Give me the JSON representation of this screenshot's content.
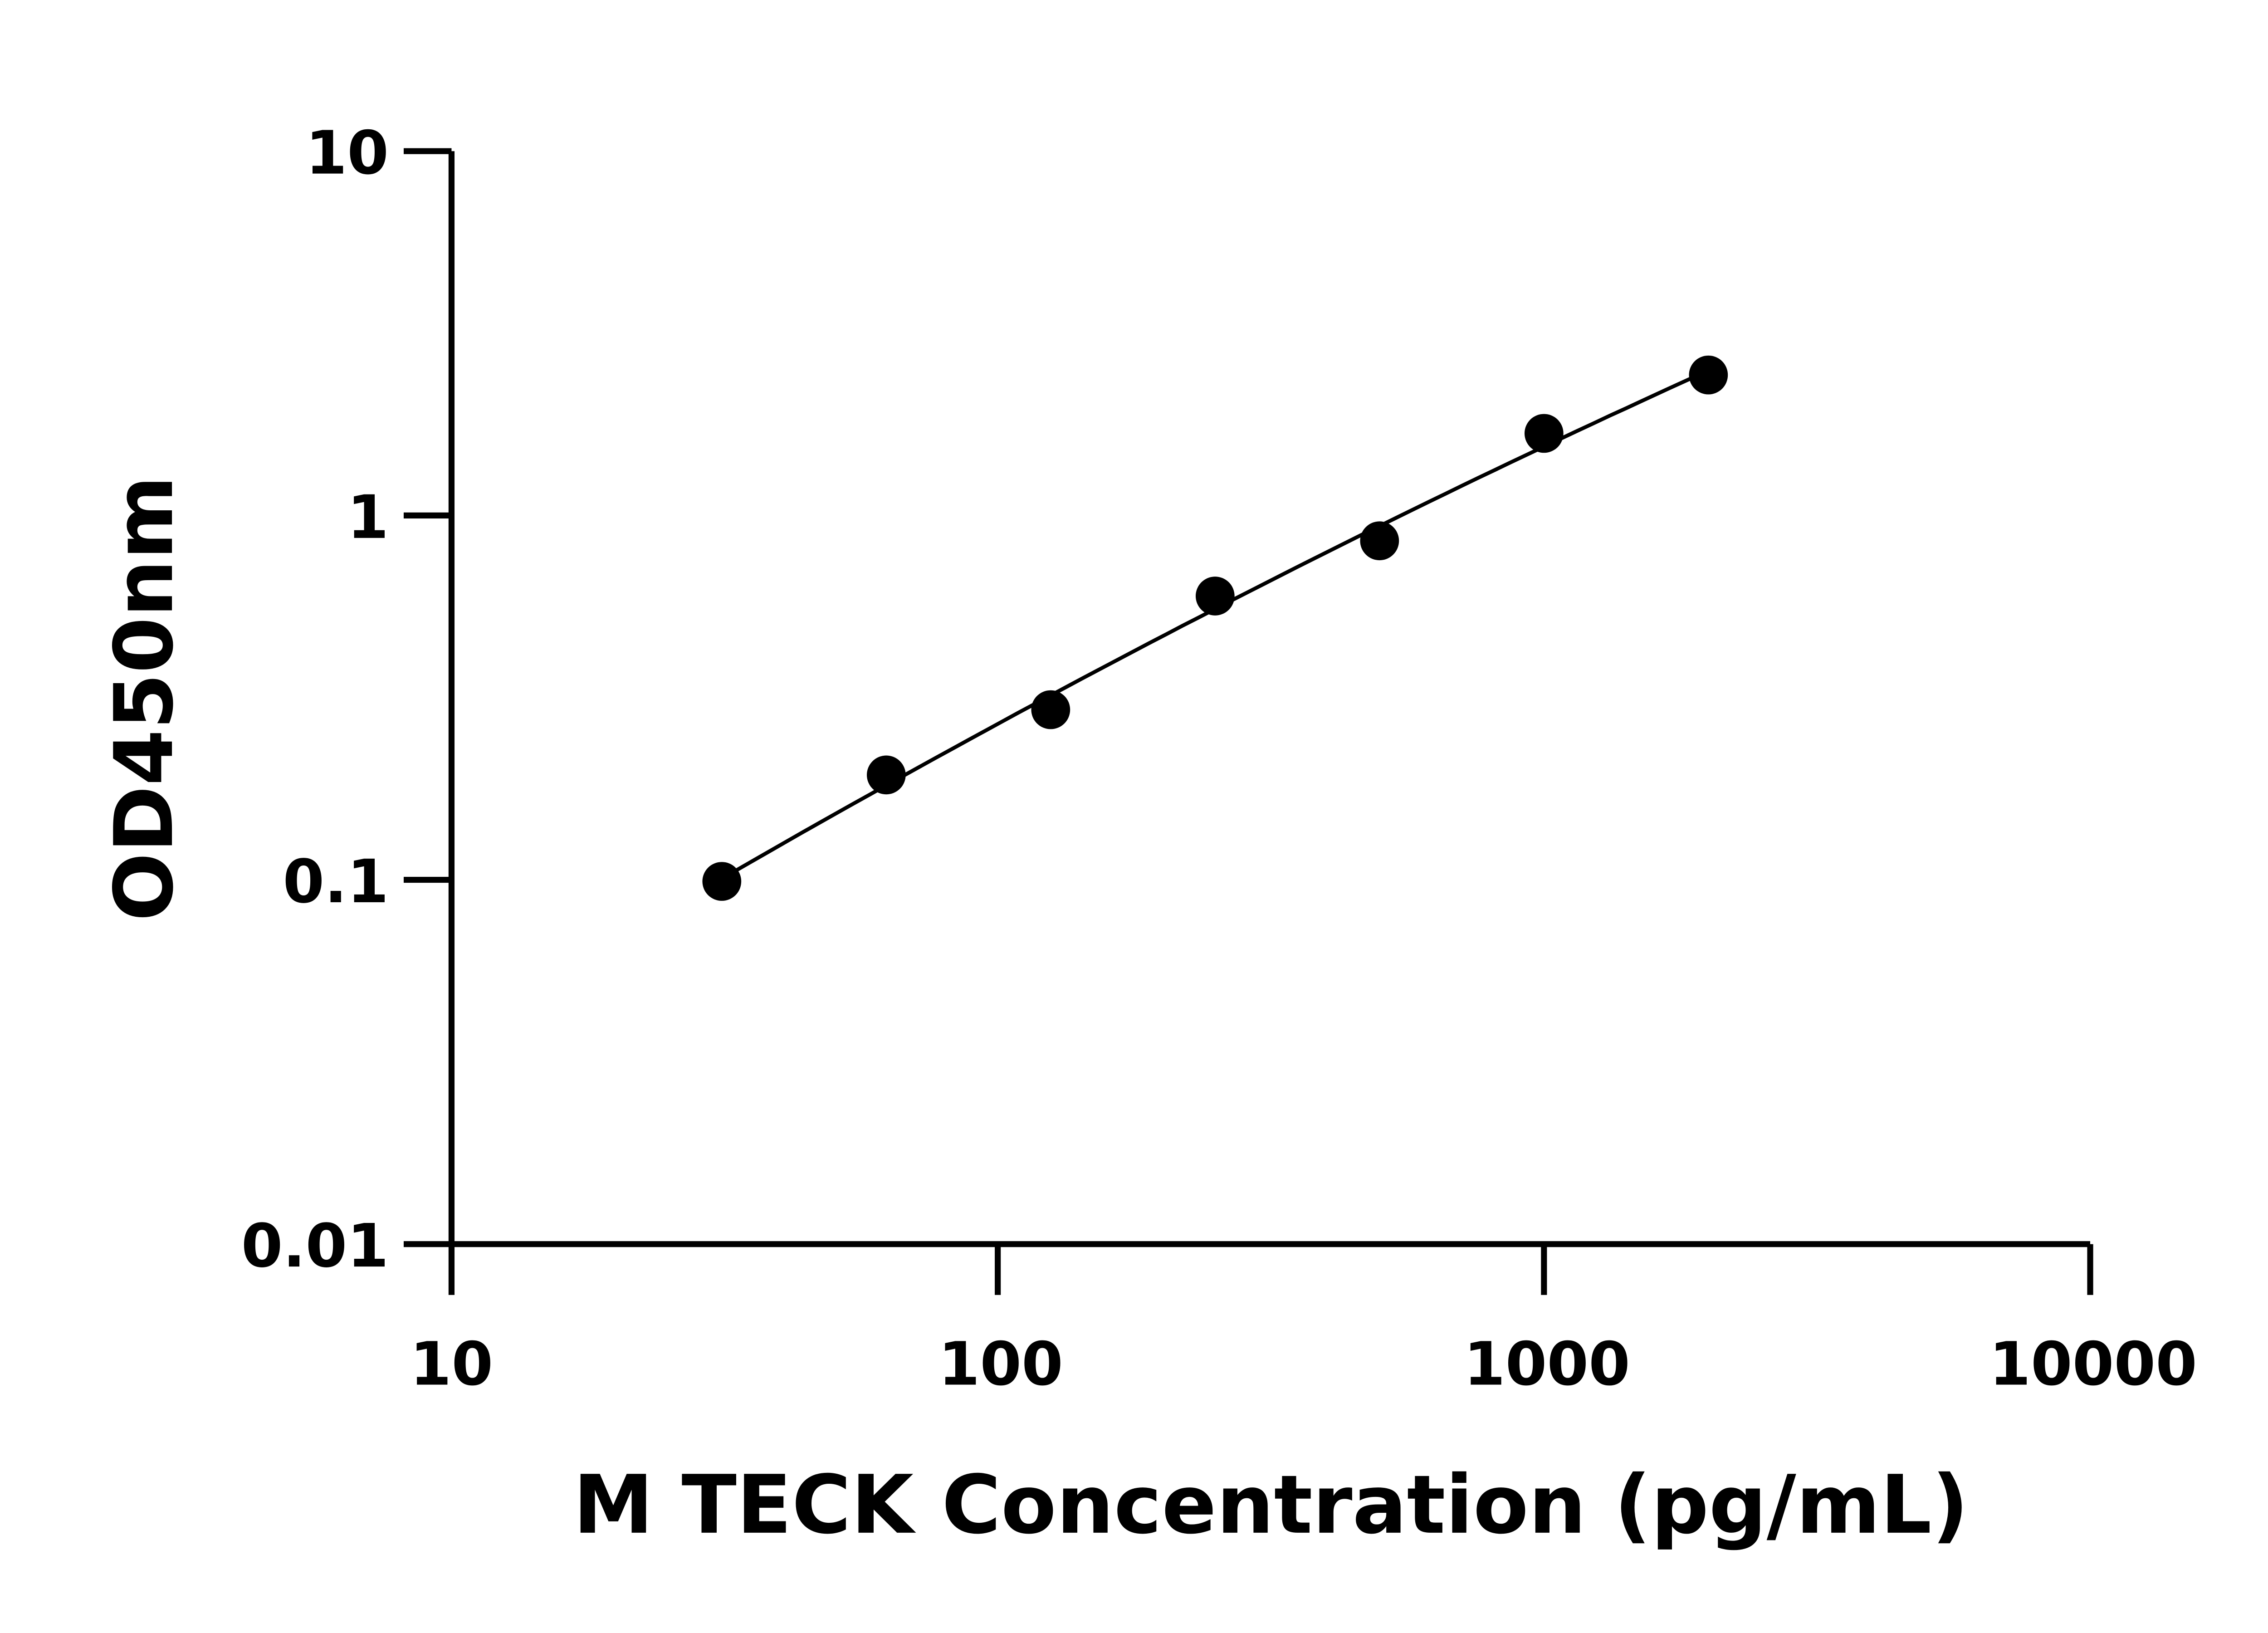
{
  "chart_data": {
    "type": "scatter",
    "title": "",
    "xlabel": "M TECK Concentration (pg/mL)",
    "ylabel": "OD450nm",
    "x_scale": "log",
    "y_scale": "log",
    "xlim": [
      10,
      10000
    ],
    "ylim": [
      0.01,
      10
    ],
    "x_ticks": [
      "10",
      "100",
      "1000",
      "10000"
    ],
    "y_ticks": [
      "0.01",
      "0.1",
      "1",
      "10"
    ],
    "grid": false,
    "legend": "none",
    "fit_curve": true,
    "color": "#000000",
    "points": [
      {
        "x": 31.25,
        "y": 0.099
      },
      {
        "x": 62.5,
        "y": 0.194
      },
      {
        "x": 125,
        "y": 0.293
      },
      {
        "x": 250,
        "y": 0.601
      },
      {
        "x": 500,
        "y": 0.852
      },
      {
        "x": 1000,
        "y": 1.68
      },
      {
        "x": 2000,
        "y": 2.43
      }
    ]
  }
}
